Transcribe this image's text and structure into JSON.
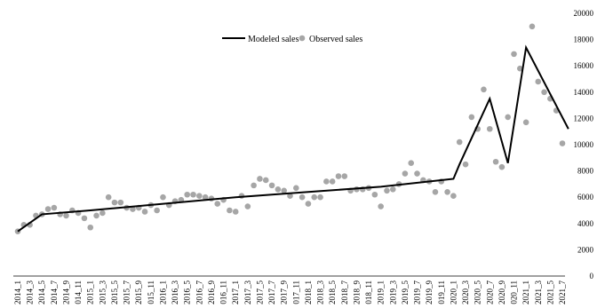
{
  "chart_data": {
    "type": "line",
    "title": "",
    "xlabel": "",
    "ylabel": "",
    "ylim": [
      0,
      20000
    ],
    "yticks": [
      0,
      2000,
      4000,
      6000,
      8000,
      10000,
      12000,
      14000,
      16000,
      18000,
      20000
    ],
    "y_axis_side": "right",
    "grid": false,
    "legend_position": "top-center",
    "x": [
      "2014_1",
      "2014_2",
      "2014_3",
      "2014_4",
      "2014_5",
      "2014_6",
      "2014_7",
      "2014_8",
      "2014_9",
      "2014_10",
      "2014_11",
      "2014_12",
      "2015_1",
      "2015_2",
      "2015_3",
      "2015_4",
      "2015_5",
      "2015_6",
      "2015_7",
      "2015_8",
      "2015_9",
      "2015_10",
      "2015_11",
      "2015_12",
      "2016_1",
      "2016_2",
      "2016_3",
      "2016_4",
      "2016_5",
      "2016_6",
      "2016_7",
      "2016_8",
      "2016_9",
      "2016_10",
      "2016_11",
      "2016_12",
      "2017_1",
      "2017_2",
      "2017_3",
      "2017_4",
      "2017_5",
      "2017_6",
      "2017_7",
      "2017_8",
      "2017_9",
      "2017_10",
      "2017_11",
      "2017_12",
      "2018_1",
      "2018_2",
      "2018_3",
      "2018_4",
      "2018_5",
      "2018_6",
      "2018_7",
      "2018_8",
      "2018_9",
      "2018_10",
      "2018_11",
      "2018_12",
      "2019_1",
      "2019_2",
      "2019_3",
      "2019_4",
      "2019_5",
      "2019_6",
      "2019_7",
      "2019_8",
      "2019_9",
      "2019_10",
      "2019_11",
      "2019_12",
      "2020_1",
      "2020_2",
      "2020_3",
      "2020_4",
      "2020_5",
      "2020_6",
      "2020_7",
      "2020_8",
      "2020_9",
      "2020_10",
      "2020_11",
      "2020_12",
      "2021_1",
      "2021_2",
      "2021_3",
      "2021_4",
      "2021_5",
      "2021_6",
      "2021_7"
    ],
    "tick_labels": [
      "2014_1",
      "2014_3",
      "2014_5",
      "2014_7",
      "2014_9",
      "014_11",
      "2015_1",
      "2015_3",
      "2015_5",
      "2015_7",
      "2015_9",
      "015_11",
      "2016_1",
      "2016_3",
      "2016_5",
      "2016_7",
      "2016_9",
      "016_11",
      "2017_1",
      "2017_3",
      "2017_5",
      "2017_7",
      "2017_9",
      "017_11",
      "2018_1",
      "2018_3",
      "2018_5",
      "2018_7",
      "2018_9",
      "018_11",
      "2019_1",
      "2019_3",
      "2019_5",
      "2019_7",
      "2019_9",
      "019_11",
      "2020_1",
      "2020_3",
      "2020_5",
      "2020_7",
      "2020_9",
      "020_11",
      "2021_1",
      "2021_3",
      "2021_5",
      "2021_7"
    ],
    "series": [
      {
        "name": "Modeled sales",
        "kind": "line",
        "color": "#000000",
        "points": [
          [
            0,
            3400
          ],
          [
            4,
            4700
          ],
          [
            12,
            5000
          ],
          [
            24,
            5500
          ],
          [
            36,
            6000
          ],
          [
            48,
            6400
          ],
          [
            60,
            6800
          ],
          [
            72,
            7400
          ],
          [
            73,
            8500
          ],
          [
            78,
            13500
          ],
          [
            81,
            8600
          ],
          [
            84,
            17400
          ],
          [
            91,
            11200
          ]
        ]
      },
      {
        "name": "Observed sales",
        "kind": "scatter",
        "color": "#a6a6a6",
        "values": [
          3400,
          3900,
          3900,
          4600,
          4700,
          5100,
          5200,
          4700,
          4600,
          5000,
          4800,
          4400,
          3700,
          4600,
          4800,
          6000,
          5600,
          5600,
          5200,
          5100,
          5200,
          4900,
          5400,
          5000,
          6000,
          5400,
          5700,
          5800,
          6200,
          6200,
          6100,
          6000,
          5900,
          5500,
          5800,
          5000,
          4900,
          6100,
          5300,
          6900,
          7400,
          7300,
          6900,
          6600,
          6500,
          6100,
          6700,
          6000,
          5500,
          6000,
          6000,
          7200,
          7200,
          7600,
          7600,
          6500,
          6600,
          6600,
          6700,
          6200,
          5300,
          6500,
          6600,
          7000,
          7800,
          8600,
          7800,
          7300,
          7200,
          6400,
          7200,
          6400,
          6100,
          10200,
          8500,
          12100,
          11200,
          14200,
          11200,
          8700,
          8300,
          12100,
          16900,
          15800,
          11700,
          19000,
          14800,
          14000,
          13500,
          12600,
          10100
        ]
      }
    ]
  }
}
